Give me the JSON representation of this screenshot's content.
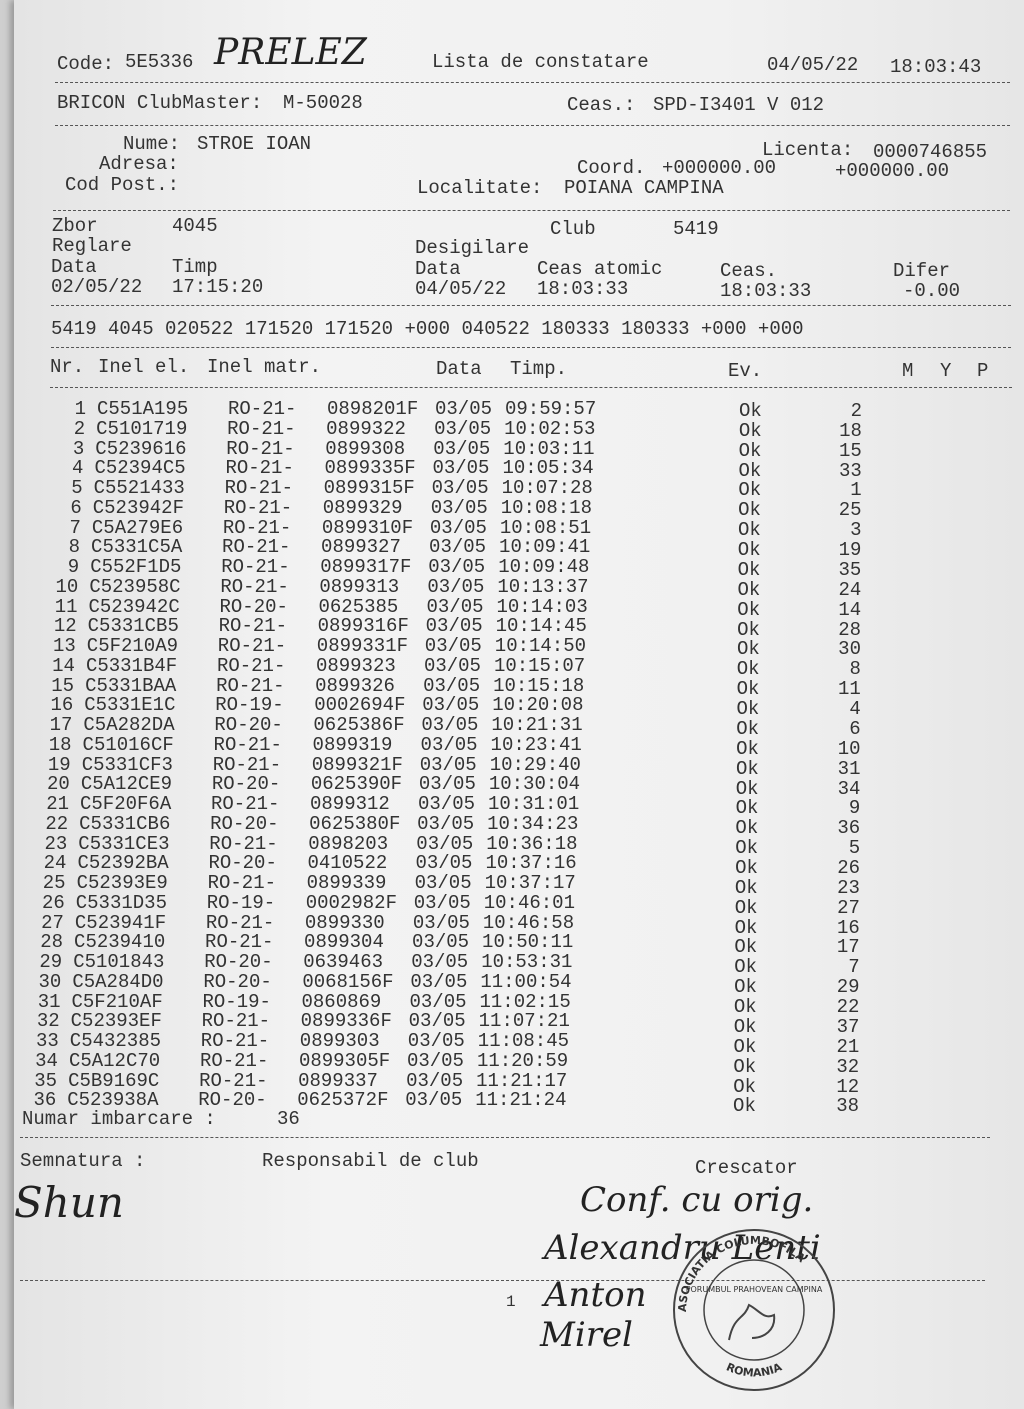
{
  "header": {
    "code_label": "Code:",
    "code": "5E5336",
    "handwritten_note": "PRELEZ",
    "title": "Lista de constatare",
    "date": "04/05/22",
    "time": "18:03:43"
  },
  "device": {
    "clubmaster_label": "BRICON ClubMaster:",
    "clubmaster": "M-50028",
    "clock_label": "Ceas.:",
    "clock": "SPD-I3401 V 012"
  },
  "fancier": {
    "name_label": "Nume:",
    "name": "STROE IOAN",
    "address_label": "Adresa:",
    "postal_label": "Cod Post.:",
    "license_label": "Licenta:",
    "license": "0000746855",
    "coord_label": "Coord.",
    "coord_x": "+000000.00",
    "coord_y": "+000000.00",
    "locality_label": "Localitate:",
    "locality": "POIANA CAMPINA"
  },
  "flight": {
    "flight_label": "Zbor",
    "flight": "4045",
    "club_label": "Club",
    "club": "5419",
    "setting_label": "Reglare",
    "unseal_label": "Desigilare",
    "setting_date_label": "Data",
    "setting_time_label": "Timp",
    "unseal_date_label": "Data",
    "atomic_label": "Ceas atomic",
    "clock_label": "Ceas.",
    "diff_label": "Difer",
    "setting_date": "02/05/22",
    "setting_time": "17:15:20",
    "unseal_date": "04/05/22",
    "atomic_time": "18:03:33",
    "clock_time": "18:03:33",
    "diff": "-0.00"
  },
  "code_line": "5419 4045 020522 171520 171520 +000 040522 180333 180333 +000 +000",
  "table": {
    "columns": [
      "Nr.",
      "Inel el.",
      "Inel matr.",
      "Data",
      "Timp.",
      "Ev.",
      "M",
      "Y",
      "P"
    ],
    "rows": [
      [
        1,
        "C551A195",
        "RO-21-",
        "0898201F",
        "03/05",
        "09:59:57",
        "Ok",
        2
      ],
      [
        2,
        "C5101719",
        "RO-21-",
        "0899322",
        "03/05",
        "10:02:53",
        "Ok",
        18
      ],
      [
        3,
        "C5239616",
        "RO-21-",
        "0899308",
        "03/05",
        "10:03:11",
        "Ok",
        15
      ],
      [
        4,
        "C52394C5",
        "RO-21-",
        "0899335F",
        "03/05",
        "10:05:34",
        "Ok",
        33
      ],
      [
        5,
        "C5521433",
        "RO-21-",
        "0899315F",
        "03/05",
        "10:07:28",
        "Ok",
        1
      ],
      [
        6,
        "C523942F",
        "RO-21-",
        "0899329",
        "03/05",
        "10:08:18",
        "Ok",
        25
      ],
      [
        7,
        "C5A279E6",
        "RO-21-",
        "0899310F",
        "03/05",
        "10:08:51",
        "Ok",
        3
      ],
      [
        8,
        "C5331C5A",
        "RO-21-",
        "0899327",
        "03/05",
        "10:09:41",
        "Ok",
        19
      ],
      [
        9,
        "C552F1D5",
        "RO-21-",
        "0899317F",
        "03/05",
        "10:09:48",
        "Ok",
        35
      ],
      [
        10,
        "C523958C",
        "RO-21-",
        "0899313",
        "03/05",
        "10:13:37",
        "Ok",
        24
      ],
      [
        11,
        "C523942C",
        "RO-20-",
        "0625385",
        "03/05",
        "10:14:03",
        "Ok",
        14
      ],
      [
        12,
        "C5331CB5",
        "RO-21-",
        "0899316F",
        "03/05",
        "10:14:45",
        "Ok",
        28
      ],
      [
        13,
        "C5F210A9",
        "RO-21-",
        "0899331F",
        "03/05",
        "10:14:50",
        "Ok",
        30
      ],
      [
        14,
        "C5331B4F",
        "RO-21-",
        "0899323",
        "03/05",
        "10:15:07",
        "Ok",
        8
      ],
      [
        15,
        "C5331BAA",
        "RO-21-",
        "0899326",
        "03/05",
        "10:15:18",
        "Ok",
        11
      ],
      [
        16,
        "C5331E1C",
        "RO-19-",
        "0002694F",
        "03/05",
        "10:20:08",
        "Ok",
        4
      ],
      [
        17,
        "C5A282DA",
        "RO-20-",
        "0625386F",
        "03/05",
        "10:21:31",
        "Ok",
        6
      ],
      [
        18,
        "C51016CF",
        "RO-21-",
        "0899319",
        "03/05",
        "10:23:41",
        "Ok",
        10
      ],
      [
        19,
        "C5331CF3",
        "RO-21-",
        "0899321F",
        "03/05",
        "10:29:40",
        "Ok",
        31
      ],
      [
        20,
        "C5A12CE9",
        "RO-20-",
        "0625390F",
        "03/05",
        "10:30:04",
        "Ok",
        34
      ],
      [
        21,
        "C5F20F6A",
        "RO-21-",
        "0899312",
        "03/05",
        "10:31:01",
        "Ok",
        9
      ],
      [
        22,
        "C5331CB6",
        "RO-20-",
        "0625380F",
        "03/05",
        "10:34:23",
        "Ok",
        36
      ],
      [
        23,
        "C5331CE3",
        "RO-21-",
        "0898203",
        "03/05",
        "10:36:18",
        "Ok",
        5
      ],
      [
        24,
        "C52392BA",
        "RO-20-",
        "0410522",
        "03/05",
        "10:37:16",
        "Ok",
        26
      ],
      [
        25,
        "C52393E9",
        "RO-21-",
        "0899339",
        "03/05",
        "10:37:17",
        "Ok",
        23
      ],
      [
        26,
        "C5331D35",
        "RO-19-",
        "0002982F",
        "03/05",
        "10:46:01",
        "Ok",
        27
      ],
      [
        27,
        "C523941F",
        "RO-21-",
        "0899330",
        "03/05",
        "10:46:58",
        "Ok",
        16
      ],
      [
        28,
        "C5239410",
        "RO-21-",
        "0899304",
        "03/05",
        "10:50:11",
        "Ok",
        17
      ],
      [
        29,
        "C5101843",
        "RO-20-",
        "0639463",
        "03/05",
        "10:53:31",
        "Ok",
        7
      ],
      [
        30,
        "C5A284D0",
        "RO-20-",
        "0068156F",
        "03/05",
        "11:00:54",
        "Ok",
        29
      ],
      [
        31,
        "C5F210AF",
        "RO-19-",
        "0860869",
        "03/05",
        "11:02:15",
        "Ok",
        22
      ],
      [
        32,
        "C52393EF",
        "RO-21-",
        "0899336F",
        "03/05",
        "11:07:21",
        "Ok",
        37
      ],
      [
        33,
        "C5432385",
        "RO-21-",
        "0899303",
        "03/05",
        "11:08:45",
        "Ok",
        21
      ],
      [
        34,
        "C5A12C70",
        "RO-21-",
        "0899305F",
        "03/05",
        "11:20:59",
        "Ok",
        32
      ],
      [
        35,
        "C5B9169C",
        "RO-21-",
        "0899337",
        "03/05",
        "11:21:17",
        "Ok",
        12
      ],
      [
        36,
        "C523938A",
        "RO-20-",
        "0625372F",
        "03/05",
        "11:21:24",
        "Ok",
        38
      ]
    ]
  },
  "footer": {
    "count_label": "Numar imbarcare :",
    "count": 36,
    "signature_label": "Semnatura :",
    "club_label": "Responsabil de club",
    "breeder_label": "Crescator",
    "page": "1",
    "signature": "Shun",
    "certification": "Conf. cu orig.",
    "signers": [
      "Alexandru Lenti",
      "Anton",
      "Mirel"
    ],
    "stamp_top": "ASOCIATIA COLUMBOFILA",
    "stamp_middle": "PORUMBUL PRAHOVEAN CAMPINA",
    "stamp_bottom": "ROMANIA"
  }
}
